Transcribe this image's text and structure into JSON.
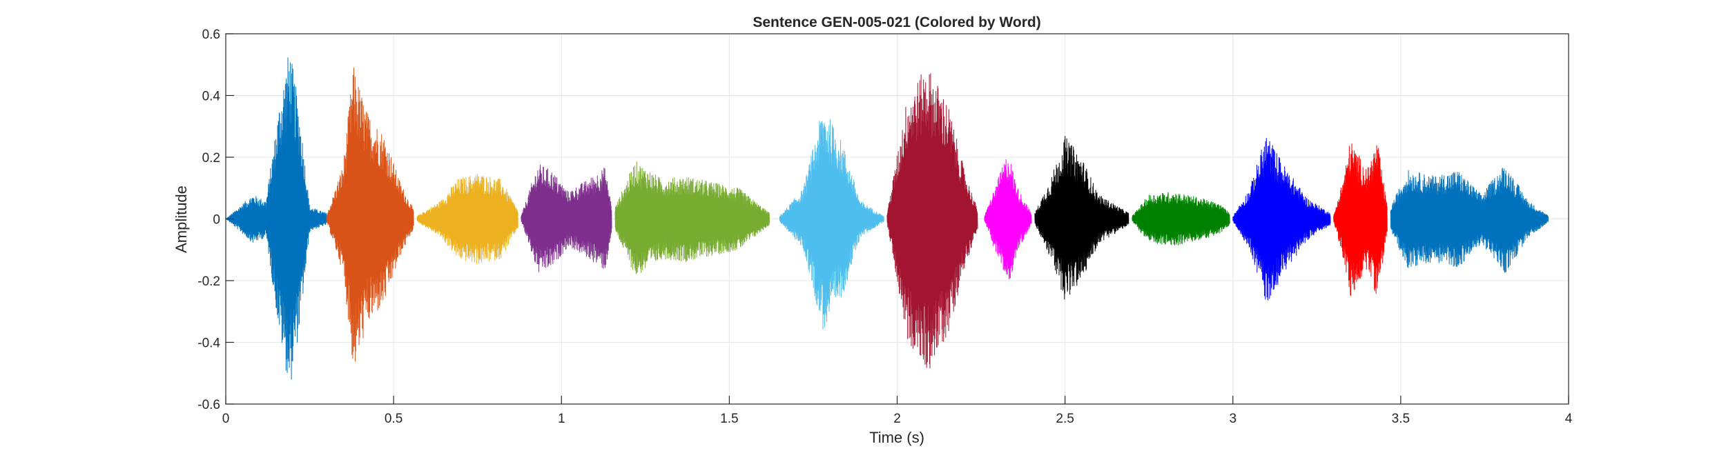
{
  "chart_data": {
    "type": "line",
    "title": "Sentence GEN-005-021 (Colored by Word)",
    "xlabel": "Time (s)",
    "ylabel": "Amplitude",
    "xlim": [
      0,
      4
    ],
    "ylim": [
      -0.6,
      0.6
    ],
    "grid": true,
    "x_ticks": [
      "0",
      "0.5",
      "1",
      "1.5",
      "2",
      "2.5",
      "3",
      "3.5",
      "4"
    ],
    "y_ticks": [
      "0.6",
      "0.4",
      "0.2",
      "0",
      "-0.2",
      "-0.4",
      "-0.6"
    ],
    "series": [
      {
        "color": "#0072BD",
        "start": 0.0,
        "end": 0.3,
        "envelope": [
          [
            0.0,
            0.0
          ],
          [
            0.08,
            0.08
          ],
          [
            0.12,
            0.06
          ],
          [
            0.16,
            0.38
          ],
          [
            0.19,
            0.56
          ],
          [
            0.22,
            0.35
          ],
          [
            0.25,
            0.04
          ],
          [
            0.3,
            0.02
          ]
        ]
      },
      {
        "color": "#D95319",
        "start": 0.3,
        "end": 0.56,
        "envelope": [
          [
            0.3,
            0.01
          ],
          [
            0.35,
            0.18
          ],
          [
            0.38,
            0.5
          ],
          [
            0.42,
            0.35
          ],
          [
            0.47,
            0.28
          ],
          [
            0.52,
            0.12
          ],
          [
            0.56,
            0.03
          ]
        ]
      },
      {
        "color": "#EDB120",
        "start": 0.57,
        "end": 0.87,
        "envelope": [
          [
            0.57,
            0.01
          ],
          [
            0.64,
            0.06
          ],
          [
            0.69,
            0.13
          ],
          [
            0.75,
            0.15
          ],
          [
            0.82,
            0.13
          ],
          [
            0.87,
            0.03
          ]
        ]
      },
      {
        "color": "#7E2F8E",
        "start": 0.88,
        "end": 1.15,
        "envelope": [
          [
            0.88,
            0.01
          ],
          [
            0.93,
            0.18
          ],
          [
            0.97,
            0.16
          ],
          [
            1.02,
            0.09
          ],
          [
            1.08,
            0.13
          ],
          [
            1.13,
            0.17
          ],
          [
            1.15,
            0.04
          ]
        ]
      },
      {
        "color": "#77AC30",
        "start": 1.16,
        "end": 1.62,
        "envelope": [
          [
            1.16,
            0.04
          ],
          [
            1.22,
            0.19
          ],
          [
            1.3,
            0.13
          ],
          [
            1.37,
            0.14
          ],
          [
            1.45,
            0.12
          ],
          [
            1.53,
            0.1
          ],
          [
            1.62,
            0.02
          ]
        ]
      },
      {
        "color": "#4DBEEE",
        "start": 1.65,
        "end": 1.96,
        "envelope": [
          [
            1.65,
            0.01
          ],
          [
            1.72,
            0.1
          ],
          [
            1.78,
            0.37
          ],
          [
            1.84,
            0.24
          ],
          [
            1.89,
            0.06
          ],
          [
            1.96,
            0.01
          ]
        ]
      },
      {
        "color": "#A2142F",
        "start": 1.97,
        "end": 2.24,
        "envelope": [
          [
            1.97,
            0.02
          ],
          [
            2.03,
            0.4
          ],
          [
            2.09,
            0.5
          ],
          [
            2.15,
            0.38
          ],
          [
            2.2,
            0.16
          ],
          [
            2.24,
            0.03
          ]
        ]
      },
      {
        "color": "#FF00FF",
        "start": 2.26,
        "end": 2.4,
        "envelope": [
          [
            2.26,
            0.01
          ],
          [
            2.29,
            0.1
          ],
          [
            2.33,
            0.22
          ],
          [
            2.36,
            0.1
          ],
          [
            2.4,
            0.02
          ]
        ]
      },
      {
        "color": "#000000",
        "start": 2.41,
        "end": 2.69,
        "envelope": [
          [
            2.41,
            0.02
          ],
          [
            2.46,
            0.14
          ],
          [
            2.5,
            0.27
          ],
          [
            2.55,
            0.2
          ],
          [
            2.6,
            0.08
          ],
          [
            2.69,
            0.02
          ]
        ]
      },
      {
        "color": "#008000",
        "start": 2.7,
        "end": 2.99,
        "envelope": [
          [
            2.7,
            0.01
          ],
          [
            2.75,
            0.08
          ],
          [
            2.82,
            0.09
          ],
          [
            2.9,
            0.07
          ],
          [
            2.96,
            0.05
          ],
          [
            2.99,
            0.02
          ]
        ]
      },
      {
        "color": "#0000FF",
        "start": 3.0,
        "end": 3.29,
        "envelope": [
          [
            3.0,
            0.01
          ],
          [
            3.05,
            0.1
          ],
          [
            3.1,
            0.28
          ],
          [
            3.15,
            0.18
          ],
          [
            3.22,
            0.07
          ],
          [
            3.29,
            0.02
          ]
        ]
      },
      {
        "color": "#FF0000",
        "start": 3.3,
        "end": 3.46,
        "envelope": [
          [
            3.3,
            0.01
          ],
          [
            3.33,
            0.14
          ],
          [
            3.35,
            0.26
          ],
          [
            3.4,
            0.16
          ],
          [
            3.43,
            0.26
          ],
          [
            3.46,
            0.04
          ]
        ]
      },
      {
        "color": "#0072BD",
        "start": 3.47,
        "end": 3.94,
        "envelope": [
          [
            3.47,
            0.04
          ],
          [
            3.52,
            0.16
          ],
          [
            3.6,
            0.14
          ],
          [
            3.67,
            0.16
          ],
          [
            3.74,
            0.08
          ],
          [
            3.81,
            0.18
          ],
          [
            3.88,
            0.06
          ],
          [
            3.94,
            0.01
          ]
        ]
      }
    ]
  }
}
